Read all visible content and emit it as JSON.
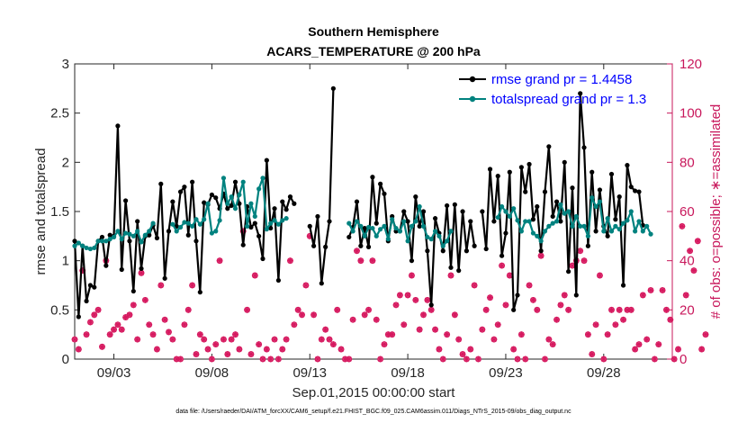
{
  "chart_data": {
    "type": "line",
    "title": [
      "Southern Hemisphere",
      "ACARS_TEMPERATURE @ 200 hPa"
    ],
    "xlabel": "Sep.01,2015 00:00:00 start",
    "ylabel": "rmse and totalspread",
    "y2label": "# of obs: o=possible; ∗=assimilated",
    "footnote": "data file: /Users/raeder/DAI/ATM_forcXX/CAM6_setup/f.e21.FHIST_BGC.f09_025.CAM6assim.011/Diags_NTrS_2015-09/obs_diag_output.nc",
    "xlim": [
      1.0,
      31.5
    ],
    "ylim": [
      0,
      3
    ],
    "y2lim": [
      0,
      120
    ],
    "xticks": [
      3,
      8,
      13,
      18,
      23,
      28
    ],
    "xtick_labels": [
      "09/03",
      "09/08",
      "09/13",
      "09/18",
      "09/23",
      "09/28"
    ],
    "yticks": [
      "0",
      "0.5",
      "1",
      "1.5",
      "2",
      "2.5",
      "3"
    ],
    "y2ticks": [
      "0",
      "20",
      "40",
      "60",
      "80",
      "100",
      "120"
    ],
    "legend_position": "top-right",
    "colors": {
      "rmse": "#000000",
      "spread": "#00827f",
      "obs": "#d6195f",
      "legend_text": "#0000ff",
      "axis_right": "#c8175b"
    },
    "series": [
      {
        "name": "rmse grand pr = 1.4458",
        "y": [
          1.2,
          0.43,
          1.15,
          0.59,
          0.75,
          0.73,
          1.2,
          1.24,
          0.95,
          1.26,
          1.25,
          2.37,
          0.91,
          1.61,
          1.2,
          0.69,
          1.4,
          0.92,
          1.25,
          1.26,
          1.36,
          1.23,
          1.78,
          0.82,
          1.3,
          1.6,
          1.35,
          1.7,
          1.75,
          1.26,
          1.8,
          1.2,
          0.68,
          1.59,
          1.57,
          1.67,
          1.64,
          1.53,
          1.68,
          1.53,
          1.56,
          1.8,
          1.58,
          1.16,
          1.55,
          1.34,
          1.38,
          1.25,
          1.02,
          2.02,
          1.33,
          1.53,
          0.8,
          1.6,
          1.52,
          1.65,
          1.58,
          null,
          null,
          null,
          1.35,
          1.15,
          1.45,
          0.77,
          1.14,
          1.4,
          2.75,
          null,
          null,
          null,
          1.24,
          1.34,
          1.6,
          1.15,
          1.33,
          1.14,
          1.85,
          1.38,
          1.78,
          1.68,
          1.2,
          1.45,
          1.3,
          1.3,
          1.5,
          1.4,
          1.0,
          1.65,
          1.35,
          1.5,
          1.1,
          0.55,
          1.43,
          1.28,
          1.1,
          1.56,
          0.93,
          1.57,
          0.9,
          1.5,
          1.1,
          1.4,
          1.15,
          null,
          1.5,
          1.12,
          1.93,
          1.4,
          1.86,
          1.05,
          1.28,
          1.9,
          0.5,
          0.65,
          1.95,
          1.7,
          1.98,
          1.42,
          1.55,
          1.1,
          1.7,
          2.16,
          1.45,
          1.6,
          1.4,
          2.0,
          0.89,
          1.74,
          0.65,
          2.7,
          2.15,
          1.15,
          1.9,
          1.3,
          1.72,
          1.35,
          1.25,
          1.88,
          1.42,
          1.65,
          0.75,
          1.97,
          1.75,
          1.71,
          1.7,
          1.36
        ]
      },
      {
        "name": "totalspread grand pr = 1.3",
        "y": [
          1.15,
          1.18,
          1.15,
          1.13,
          1.12,
          1.13,
          1.2,
          1.2,
          1.2,
          1.22,
          1.24,
          1.3,
          1.22,
          1.28,
          1.27,
          1.25,
          1.3,
          1.19,
          1.26,
          1.3,
          1.38,
          null,
          null,
          null,
          null,
          1.37,
          1.3,
          1.34,
          1.39,
          1.38,
          1.35,
          1.42,
          1.37,
          1.42,
          1.58,
          1.28,
          1.3,
          1.41,
          1.84,
          1.58,
          1.65,
          1.53,
          1.67,
          1.8,
          1.35,
          1.58,
          1.45,
          1.73,
          1.84,
          1.32,
          1.38,
          1.41,
          1.37,
          1.41,
          1.43,
          null,
          null,
          null,
          null,
          null,
          null,
          null,
          null,
          null,
          null,
          null,
          null,
          null,
          null,
          null,
          1.38,
          1.3,
          1.4,
          1.35,
          1.25,
          1.34,
          1.33,
          1.25,
          1.32,
          1.35,
          1.22,
          1.42,
          1.33,
          1.3,
          1.4,
          1.2,
          1.35,
          1.4,
          1.55,
          1.35,
          1.24,
          1.22,
          1.3,
          1.25,
          1.15,
          1.2,
          1.3,
          null,
          null,
          null,
          null,
          null,
          null,
          null,
          null,
          null,
          null,
          null,
          1.44,
          1.55,
          1.5,
          1.45,
          1.53,
          1.41,
          1.3,
          1.4,
          1.4,
          1.28,
          1.25,
          1.2,
          1.3,
          1.35,
          1.38,
          1.4,
          1.57,
          1.48,
          1.5,
          1.35,
          1.45,
          1.35,
          1.35,
          1.25,
          1.64,
          1.55,
          1.6,
          1.3,
          1.43,
          1.3,
          1.35,
          1.32,
          1.38,
          1.41,
          1.5,
          1.3,
          1.4,
          1.3,
          1.35,
          1.27
        ]
      }
    ],
    "obs_possible": [
      8,
      4,
      36,
      10,
      15,
      18,
      20,
      5,
      40,
      10,
      12,
      14,
      12,
      17,
      18,
      22,
      8,
      35,
      24,
      14,
      10,
      4,
      30,
      16,
      11,
      8,
      0,
      0,
      14,
      20,
      30,
      2,
      10,
      8,
      4,
      0,
      6,
      40,
      8,
      2,
      8,
      10,
      4,
      52,
      20,
      2,
      34,
      6,
      0,
      4,
      0,
      8,
      0,
      4,
      8,
      40,
      14,
      20,
      18,
      30,
      50,
      18,
      0,
      8,
      12,
      8,
      6,
      20,
      4,
      0,
      0,
      16,
      44,
      40,
      18,
      20,
      40,
      16,
      0,
      6,
      10,
      10,
      22,
      26,
      14,
      26,
      34,
      24,
      12,
      18,
      24,
      20,
      12,
      4,
      0,
      10,
      34,
      18,
      8,
      2,
      0,
      4,
      30,
      0,
      12,
      20,
      25,
      8,
      14,
      38,
      22,
      34,
      4,
      0,
      10,
      0,
      30,
      24,
      20,
      42,
      0,
      8,
      6,
      16,
      22,
      26,
      20,
      38,
      40,
      44,
      40,
      10,
      2,
      14,
      34,
      0,
      10,
      20,
      14,
      20,
      16,
      20,
      20,
      4,
      6,
      26,
      8,
      28,
      0,
      6,
      28,
      20,
      16,
      0,
      4,
      54,
      26,
      44,
      36,
      48,
      4,
      10
    ]
  }
}
